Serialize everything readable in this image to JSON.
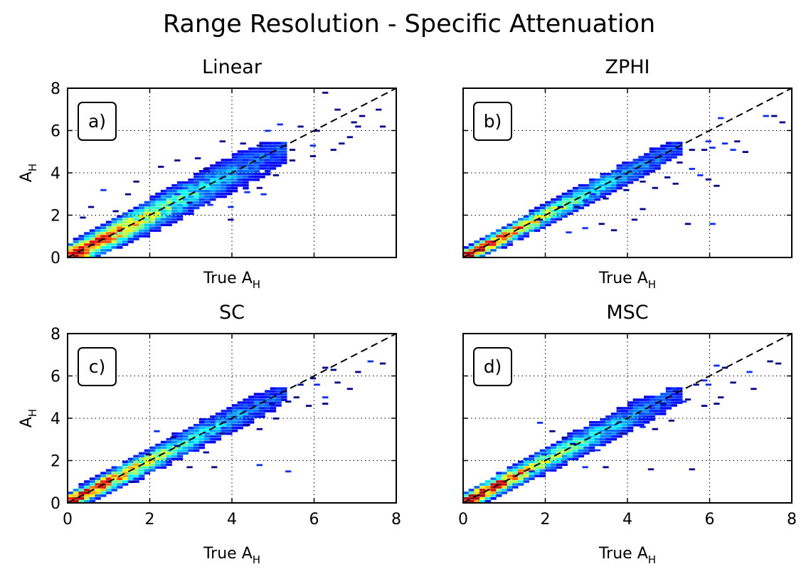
{
  "figure": {
    "title": "Range Resolution - Specific Attenuation"
  },
  "chart_data": [
    {
      "type": "heatmap",
      "title": "Linear",
      "panel_label": "a)",
      "xlabel": "True A",
      "xlabel_sub": "H",
      "ylabel": "A",
      "ylabel_sub": "H",
      "xlim": [
        0,
        8
      ],
      "ylim": [
        0,
        8
      ],
      "xticks": [
        0,
        2,
        4,
        6,
        8
      ],
      "yticks": [
        0,
        2,
        4,
        6,
        8
      ],
      "show_xticklabels": false,
      "show_yticklabels": true,
      "grid": true,
      "reference_line": "y = x (dashed)",
      "spread": 0.55,
      "density_scale": 1.0,
      "outliers": [
        [
          6.2,
          7.7
        ],
        [
          6.5,
          6.9
        ],
        [
          7.1,
          6.6
        ],
        [
          7.5,
          6.9
        ],
        [
          6.9,
          6.3
        ],
        [
          5.6,
          6.1
        ],
        [
          5.1,
          6.2
        ],
        [
          4.8,
          5.9
        ],
        [
          6.0,
          5.9
        ],
        [
          6.8,
          5.6
        ],
        [
          7.0,
          6.1
        ],
        [
          7.6,
          6.1
        ],
        [
          5.9,
          5.2
        ],
        [
          6.4,
          5.0
        ],
        [
          4.6,
          5.2
        ],
        [
          5.4,
          5.0
        ],
        [
          3.7,
          5.4
        ],
        [
          4.2,
          5.3
        ],
        [
          3.1,
          4.6
        ],
        [
          2.6,
          4.5
        ],
        [
          2.2,
          4.2
        ],
        [
          1.6,
          3.5
        ],
        [
          0.8,
          3.1
        ],
        [
          1.4,
          2.9
        ],
        [
          2.9,
          2.5
        ],
        [
          3.4,
          2.4
        ],
        [
          3.9,
          2.3
        ],
        [
          4.3,
          3.0
        ],
        [
          4.7,
          2.9
        ],
        [
          5.0,
          3.8
        ],
        [
          4.6,
          3.2
        ],
        [
          3.9,
          1.7
        ],
        [
          0.5,
          2.3
        ],
        [
          1.1,
          2.1
        ],
        [
          5.4,
          4.5
        ],
        [
          5.9,
          4.7
        ],
        [
          6.6,
          5.3
        ],
        [
          3.3,
          4.1
        ],
        [
          2.6,
          2.9
        ],
        [
          0.3,
          1.8
        ]
      ]
    },
    {
      "type": "heatmap",
      "title": "ZPHI",
      "panel_label": "b)",
      "xlabel": "True A",
      "xlabel_sub": "H",
      "ylabel": "",
      "ylabel_sub": "",
      "xlim": [
        0,
        8
      ],
      "ylim": [
        0,
        8
      ],
      "xticks": [
        0,
        2,
        4,
        6,
        8
      ],
      "yticks": [
        0,
        2,
        4,
        6,
        8
      ],
      "show_xticklabels": false,
      "show_yticklabels": false,
      "grid": true,
      "reference_line": "y = x (dashed)",
      "spread": 0.35,
      "density_scale": 1.05,
      "outliers": [
        [
          7.5,
          6.6
        ],
        [
          6.2,
          6.5
        ],
        [
          7.3,
          6.6
        ],
        [
          7.7,
          6.3
        ],
        [
          6.6,
          5.4
        ],
        [
          5.9,
          5.4
        ],
        [
          6.3,
          5.3
        ],
        [
          5.5,
          5.0
        ],
        [
          5.8,
          5.0
        ],
        [
          6.0,
          5.1
        ],
        [
          6.5,
          5.0
        ],
        [
          6.8,
          4.9
        ],
        [
          5.2,
          4.4
        ],
        [
          5.5,
          4.1
        ],
        [
          5.7,
          3.8
        ],
        [
          5.9,
          3.6
        ],
        [
          5.1,
          3.4
        ],
        [
          4.9,
          3.7
        ],
        [
          4.6,
          3.2
        ],
        [
          4.3,
          3.5
        ],
        [
          3.9,
          3.1
        ],
        [
          3.4,
          2.7
        ],
        [
          3.1,
          2.9
        ],
        [
          2.9,
          2.6
        ],
        [
          2.7,
          2.3
        ],
        [
          3.6,
          1.2
        ],
        [
          2.9,
          1.3
        ],
        [
          2.5,
          1.1
        ],
        [
          2.3,
          2.3
        ],
        [
          1.8,
          1.7
        ],
        [
          5.4,
          1.5
        ],
        [
          6.0,
          1.5
        ],
        [
          4.1,
          1.7
        ],
        [
          3.3,
          1.5
        ],
        [
          6.1,
          3.3
        ],
        [
          4.3,
          2.2
        ]
      ]
    },
    {
      "type": "heatmap",
      "title": "SC",
      "panel_label": "c)",
      "xlabel": "True A",
      "xlabel_sub": "H",
      "ylabel": "A",
      "ylabel_sub": "H",
      "xlim": [
        0,
        8
      ],
      "ylim": [
        0,
        8
      ],
      "xticks": [
        0,
        2,
        4,
        6,
        8
      ],
      "yticks": [
        0,
        2,
        4,
        6,
        8
      ],
      "show_xticklabels": true,
      "show_yticklabels": true,
      "grid": true,
      "reference_line": "y = x (dashed)",
      "spread": 0.4,
      "density_scale": 1.05,
      "outliers": [
        [
          7.6,
          6.5
        ],
        [
          7.3,
          6.6
        ],
        [
          7.0,
          6.1
        ],
        [
          6.4,
          6.2
        ],
        [
          6.2,
          6.3
        ],
        [
          5.9,
          5.8
        ],
        [
          6.5,
          5.6
        ],
        [
          6.8,
          5.3
        ],
        [
          6.2,
          4.9
        ],
        [
          6.0,
          5.5
        ],
        [
          5.6,
          5.5
        ],
        [
          5.1,
          5.3
        ],
        [
          5.3,
          4.7
        ],
        [
          4.9,
          4.6
        ],
        [
          5.5,
          4.9
        ],
        [
          5.8,
          4.5
        ],
        [
          6.2,
          4.6
        ],
        [
          5.0,
          3.9
        ],
        [
          4.6,
          3.4
        ],
        [
          4.3,
          3.6
        ],
        [
          3.7,
          3.2
        ],
        [
          3.3,
          2.3
        ],
        [
          2.9,
          1.6
        ],
        [
          2.6,
          2.6
        ],
        [
          2.1,
          3.3
        ],
        [
          2.5,
          3.0
        ],
        [
          1.9,
          2.2
        ],
        [
          5.3,
          1.4
        ],
        [
          4.6,
          1.7
        ],
        [
          3.5,
          1.6
        ],
        [
          1.5,
          0.9
        ]
      ]
    },
    {
      "type": "heatmap",
      "title": "MSC",
      "panel_label": "d)",
      "xlabel": "True A",
      "xlabel_sub": "H",
      "ylabel": "",
      "ylabel_sub": "",
      "xlim": [
        0,
        8
      ],
      "ylim": [
        0,
        8
      ],
      "xticks": [
        0,
        2,
        4,
        6,
        8
      ],
      "yticks": [
        0,
        2,
        4,
        6,
        8
      ],
      "show_xticklabels": true,
      "show_yticklabels": false,
      "grid": true,
      "reference_line": "y = x (dashed)",
      "spread": 0.4,
      "density_scale": 1.05,
      "outliers": [
        [
          7.6,
          6.5
        ],
        [
          7.4,
          6.6
        ],
        [
          6.9,
          6.1
        ],
        [
          6.3,
          6.3
        ],
        [
          6.1,
          6.4
        ],
        [
          5.8,
          5.7
        ],
        [
          6.5,
          5.6
        ],
        [
          7.0,
          5.3
        ],
        [
          6.2,
          4.9
        ],
        [
          5.9,
          5.5
        ],
        [
          5.6,
          5.5
        ],
        [
          5.1,
          5.2
        ],
        [
          5.3,
          4.7
        ],
        [
          4.8,
          4.6
        ],
        [
          5.4,
          4.8
        ],
        [
          5.8,
          4.5
        ],
        [
          6.1,
          4.6
        ],
        [
          5.0,
          3.8
        ],
        [
          4.6,
          3.4
        ],
        [
          4.3,
          3.5
        ],
        [
          3.8,
          3.2
        ],
        [
          3.2,
          2.4
        ],
        [
          2.9,
          1.6
        ],
        [
          2.6,
          2.7
        ],
        [
          2.1,
          3.3
        ],
        [
          1.8,
          3.7
        ],
        [
          2.4,
          3.0
        ],
        [
          1.9,
          2.2
        ],
        [
          5.5,
          1.5
        ],
        [
          4.5,
          1.5
        ],
        [
          3.4,
          1.6
        ],
        [
          1.6,
          1.4
        ]
      ]
    }
  ],
  "colors": {
    "reference_line": "#000000",
    "grid": "#000000",
    "background": "#ffffff",
    "colormap": "jet"
  }
}
